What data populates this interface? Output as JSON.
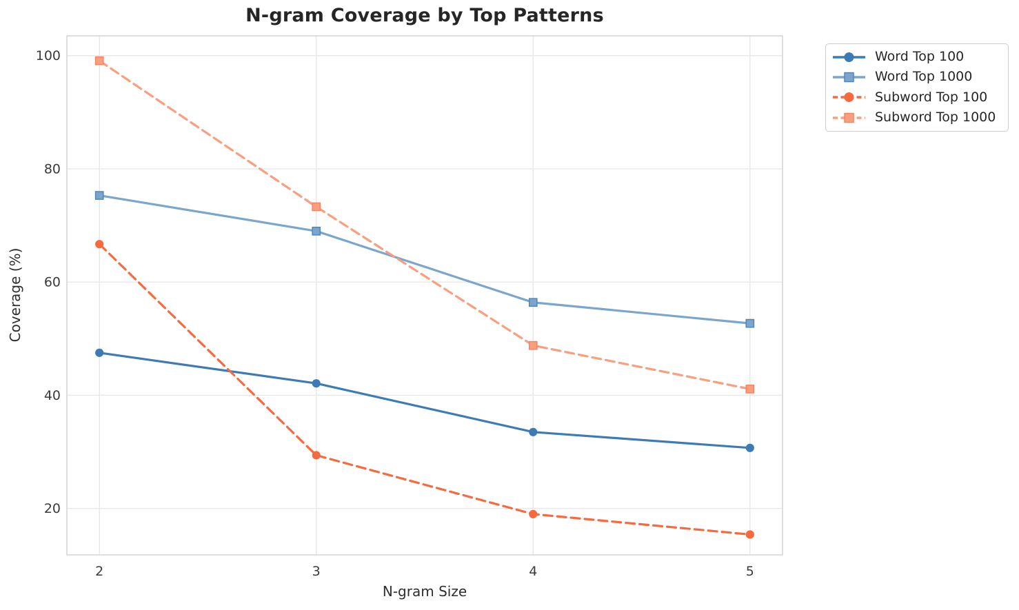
{
  "chart_data": {
    "type": "line",
    "title": "N-gram Coverage by Top Patterns",
    "xlabel": "N-gram Size",
    "ylabel": "Coverage (%)",
    "categories": [
      2,
      3,
      4,
      5
    ],
    "xticks": [
      "2",
      "3",
      "4",
      "5"
    ],
    "yticks": [
      20,
      40,
      60,
      80,
      100
    ],
    "xlim": [
      1.85,
      5.15
    ],
    "ylim": [
      11.8,
      103.5
    ],
    "grid": true,
    "legend_position": "outside-upper-right",
    "series": [
      {
        "name": "Word Top 100",
        "values": [
          47.5,
          42.1,
          33.5,
          30.7
        ],
        "color": "#3d7bb4",
        "edge": "#3d7bb4",
        "marker": "circle",
        "line": "solid"
      },
      {
        "name": "Word Top 1000",
        "values": [
          75.3,
          69.0,
          56.4,
          52.7
        ],
        "color": "#7aa6ce",
        "edge": "#4f86ba",
        "marker": "square",
        "line": "solid"
      },
      {
        "name": "Subword Top 100",
        "values": [
          66.7,
          29.4,
          19.0,
          15.4
        ],
        "color": "#f7693f",
        "edge": "#f7693f",
        "marker": "circle",
        "line": "dashed"
      },
      {
        "name": "Subword Top 1000",
        "values": [
          99.1,
          73.3,
          48.8,
          41.1
        ],
        "color": "#fa9e80",
        "edge": "#f8845d",
        "marker": "square",
        "line": "dashed"
      }
    ]
  }
}
